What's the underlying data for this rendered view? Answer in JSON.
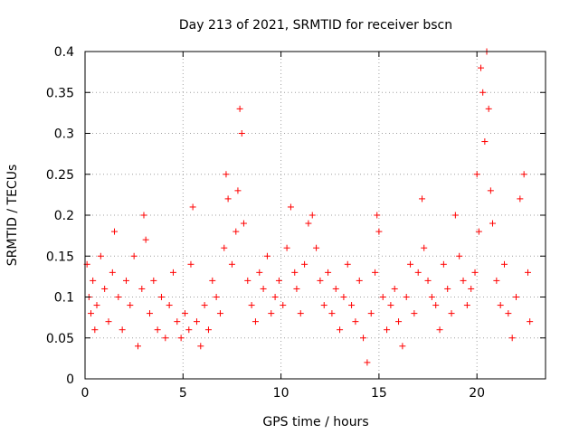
{
  "chart_data": {
    "type": "scatter",
    "title": "Day 213 of 2021, SRMTID for receiver bscn",
    "xlabel": "GPS time / hours",
    "ylabel": "SRMTID / TECUs",
    "xlim": [
      0,
      23.5
    ],
    "ylim": [
      0,
      0.4
    ],
    "x_ticks": [
      0,
      5,
      10,
      15,
      20
    ],
    "x_tick_labels": [
      "0",
      "5",
      "10",
      "15",
      "20"
    ],
    "y_ticks": [
      0,
      0.05,
      0.1,
      0.15,
      0.2,
      0.25,
      0.3,
      0.35,
      0.4
    ],
    "y_tick_labels": [
      "0",
      "0.05",
      "0.1",
      "0.15",
      "0.2",
      "0.25",
      "0.3",
      "0.35",
      "0.4"
    ],
    "grid": true,
    "marker": "+",
    "color": "#ff0000",
    "series": [
      {
        "name": "SRMTID",
        "x": [
          0.1,
          0.2,
          0.3,
          0.4,
          0.5,
          0.6,
          0.8,
          1.0,
          1.2,
          1.4,
          1.5,
          1.7,
          1.9,
          2.1,
          2.3,
          2.5,
          2.7,
          2.9,
          3.0,
          3.1,
          3.3,
          3.5,
          3.7,
          3.9,
          4.1,
          4.3,
          4.5,
          4.7,
          4.9,
          5.1,
          5.3,
          5.4,
          5.5,
          5.7,
          5.9,
          6.1,
          6.3,
          6.5,
          6.7,
          6.9,
          7.1,
          7.2,
          7.3,
          7.5,
          7.7,
          7.8,
          7.9,
          8.0,
          8.1,
          8.3,
          8.5,
          8.7,
          8.9,
          9.1,
          9.3,
          9.5,
          9.7,
          9.9,
          10.1,
          10.3,
          10.5,
          10.7,
          10.8,
          11.0,
          11.2,
          11.4,
          11.6,
          11.8,
          12.0,
          12.2,
          12.4,
          12.6,
          12.8,
          13.0,
          13.2,
          13.4,
          13.6,
          13.8,
          14.0,
          14.2,
          14.4,
          14.6,
          14.8,
          14.9,
          15.0,
          15.2,
          15.4,
          15.6,
          15.8,
          16.0,
          16.2,
          16.4,
          16.6,
          16.8,
          17.0,
          17.2,
          17.3,
          17.5,
          17.7,
          17.9,
          18.1,
          18.3,
          18.5,
          18.7,
          18.9,
          19.1,
          19.3,
          19.5,
          19.7,
          19.9,
          20.0,
          20.1,
          20.2,
          20.3,
          20.4,
          20.5,
          20.6,
          20.7,
          20.8,
          21.0,
          21.2,
          21.4,
          21.6,
          21.8,
          22.0,
          22.2,
          22.4,
          22.6,
          22.7
        ],
        "y": [
          0.14,
          0.1,
          0.08,
          0.12,
          0.06,
          0.09,
          0.15,
          0.11,
          0.07,
          0.13,
          0.18,
          0.1,
          0.06,
          0.12,
          0.09,
          0.15,
          0.04,
          0.11,
          0.2,
          0.17,
          0.08,
          0.12,
          0.06,
          0.1,
          0.05,
          0.09,
          0.13,
          0.07,
          0.05,
          0.08,
          0.06,
          0.14,
          0.21,
          0.07,
          0.04,
          0.09,
          0.06,
          0.12,
          0.1,
          0.08,
          0.16,
          0.25,
          0.22,
          0.14,
          0.18,
          0.23,
          0.33,
          0.3,
          0.19,
          0.12,
          0.09,
          0.07,
          0.13,
          0.11,
          0.15,
          0.08,
          0.1,
          0.12,
          0.09,
          0.16,
          0.21,
          0.13,
          0.11,
          0.08,
          0.14,
          0.19,
          0.2,
          0.16,
          0.12,
          0.09,
          0.13,
          0.08,
          0.11,
          0.06,
          0.1,
          0.14,
          0.09,
          0.07,
          0.12,
          0.05,
          0.02,
          0.08,
          0.13,
          0.2,
          0.18,
          0.1,
          0.06,
          0.09,
          0.11,
          0.07,
          0.04,
          0.1,
          0.14,
          0.08,
          0.13,
          0.22,
          0.16,
          0.12,
          0.1,
          0.09,
          0.06,
          0.14,
          0.11,
          0.08,
          0.2,
          0.15,
          0.12,
          0.09,
          0.11,
          0.13,
          0.25,
          0.18,
          0.38,
          0.35,
          0.29,
          0.4,
          0.33,
          0.23,
          0.19,
          0.12,
          0.09,
          0.14,
          0.08,
          0.05,
          0.1,
          0.22,
          0.25,
          0.13,
          0.07
        ]
      }
    ]
  }
}
